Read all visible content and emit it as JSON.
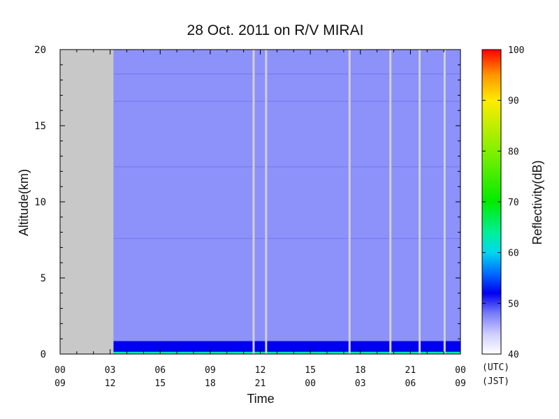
{
  "chart_data": {
    "type": "heatmap",
    "title": "28 Oct. 2011  on R/V MIRAI",
    "xlabel": "Time",
    "ylabel": "Altitude(km)",
    "xlim": [
      0,
      24
    ],
    "ylim": [
      0,
      20
    ],
    "x_ticks_utc": [
      "00",
      "03",
      "06",
      "09",
      "12",
      "15",
      "18",
      "21",
      "00"
    ],
    "x_ticks_jst": [
      "09",
      "12",
      "15",
      "18",
      "21",
      "00",
      "03",
      "06",
      "09"
    ],
    "x_tick_hours": [
      0,
      3,
      6,
      9,
      12,
      15,
      18,
      21,
      24
    ],
    "y_ticks": [
      0,
      5,
      10,
      15,
      20
    ],
    "utc_label": "(UTC)",
    "jst_label": "(JST)",
    "colorbar": {
      "label": "Reflectivity(dB)",
      "min": 40,
      "max": 100,
      "ticks": [
        40,
        50,
        60,
        70,
        80,
        90,
        100
      ]
    },
    "missing_data_hours": [
      0,
      3.2
    ],
    "data_gaps_hours": [
      11.6,
      12.35,
      17.35,
      19.8,
      21.55,
      23.05
    ],
    "noise_floor_db": 47,
    "layers": [
      {
        "name": "near-surface clutter",
        "from_km": 0,
        "to_km": 0.15,
        "db": 63
      },
      {
        "name": "low return",
        "from_km": 0.15,
        "to_km": 0.85,
        "db": 52
      }
    ],
    "horizontal_artifacts_km": [
      18.4,
      16.6,
      12.3,
      7.6
    ]
  },
  "colors": {
    "missing": "#c8c8c8",
    "background_field": "#8a8ff8",
    "gap_line": "#d0d0d0"
  }
}
